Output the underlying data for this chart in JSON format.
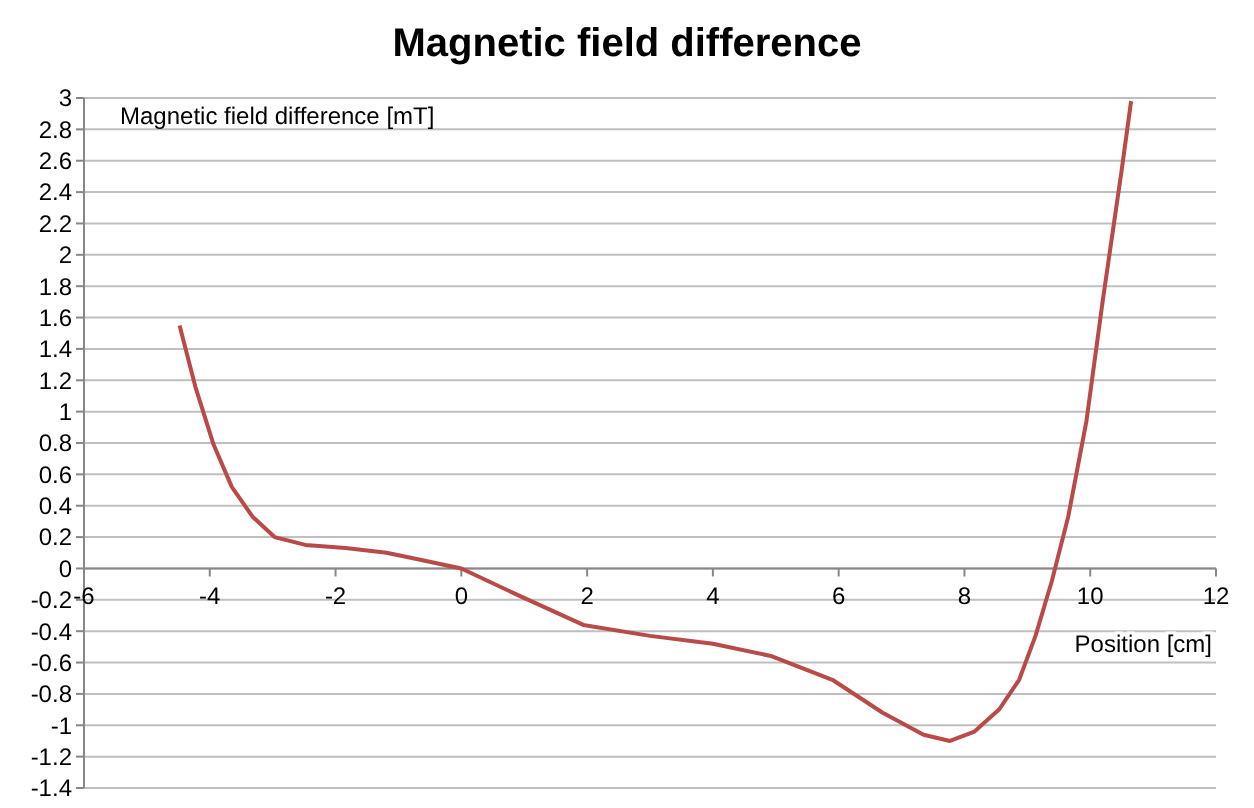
{
  "chart_data": {
    "type": "line",
    "title": "Magnetic field difference",
    "xlabel": "Position [cm]",
    "ylabel": "Magnetic field difference [mT]",
    "x": [
      -4.48,
      -4.23,
      -3.94,
      -3.65,
      -3.32,
      -2.97,
      -2.48,
      -1.84,
      -1.19,
      -0.71,
      0,
      0.9,
      1.94,
      3.0,
      4.0,
      4.94,
      5.9,
      6.7,
      7.35,
      7.77,
      8.16,
      8.55,
      8.87,
      9.13,
      9.39,
      9.65,
      9.94,
      10.2,
      10.5,
      10.65
    ],
    "series": [
      {
        "color": "#b94a48",
        "values": [
          1.55,
          1.16,
          0.79,
          0.52,
          0.33,
          0.2,
          0.15,
          0.13,
          0.1,
          0.06,
          0,
          -0.17,
          -0.36,
          -0.43,
          -0.48,
          -0.56,
          -0.71,
          -0.92,
          -1.06,
          -1.1,
          -1.04,
          -0.9,
          -0.71,
          -0.43,
          -0.08,
          0.33,
          0.94,
          1.71,
          2.54,
          2.98
        ]
      }
    ],
    "xlim": [
      -6,
      12
    ],
    "xticks": [
      -6,
      -4,
      -2,
      0,
      2,
      4,
      6,
      8,
      10,
      12
    ],
    "ylim": [
      -1.4,
      3
    ],
    "yticks": [
      -1.4,
      -1.2,
      -1,
      -0.8,
      -0.6,
      -0.4,
      -0.2,
      0,
      0.2,
      0.4,
      0.6,
      0.8,
      1,
      1.2,
      1.4,
      1.6,
      1.8,
      2,
      2.2,
      2.4,
      2.6,
      2.8,
      3
    ],
    "grid": "y",
    "marker": "none",
    "line_style": "solid"
  }
}
